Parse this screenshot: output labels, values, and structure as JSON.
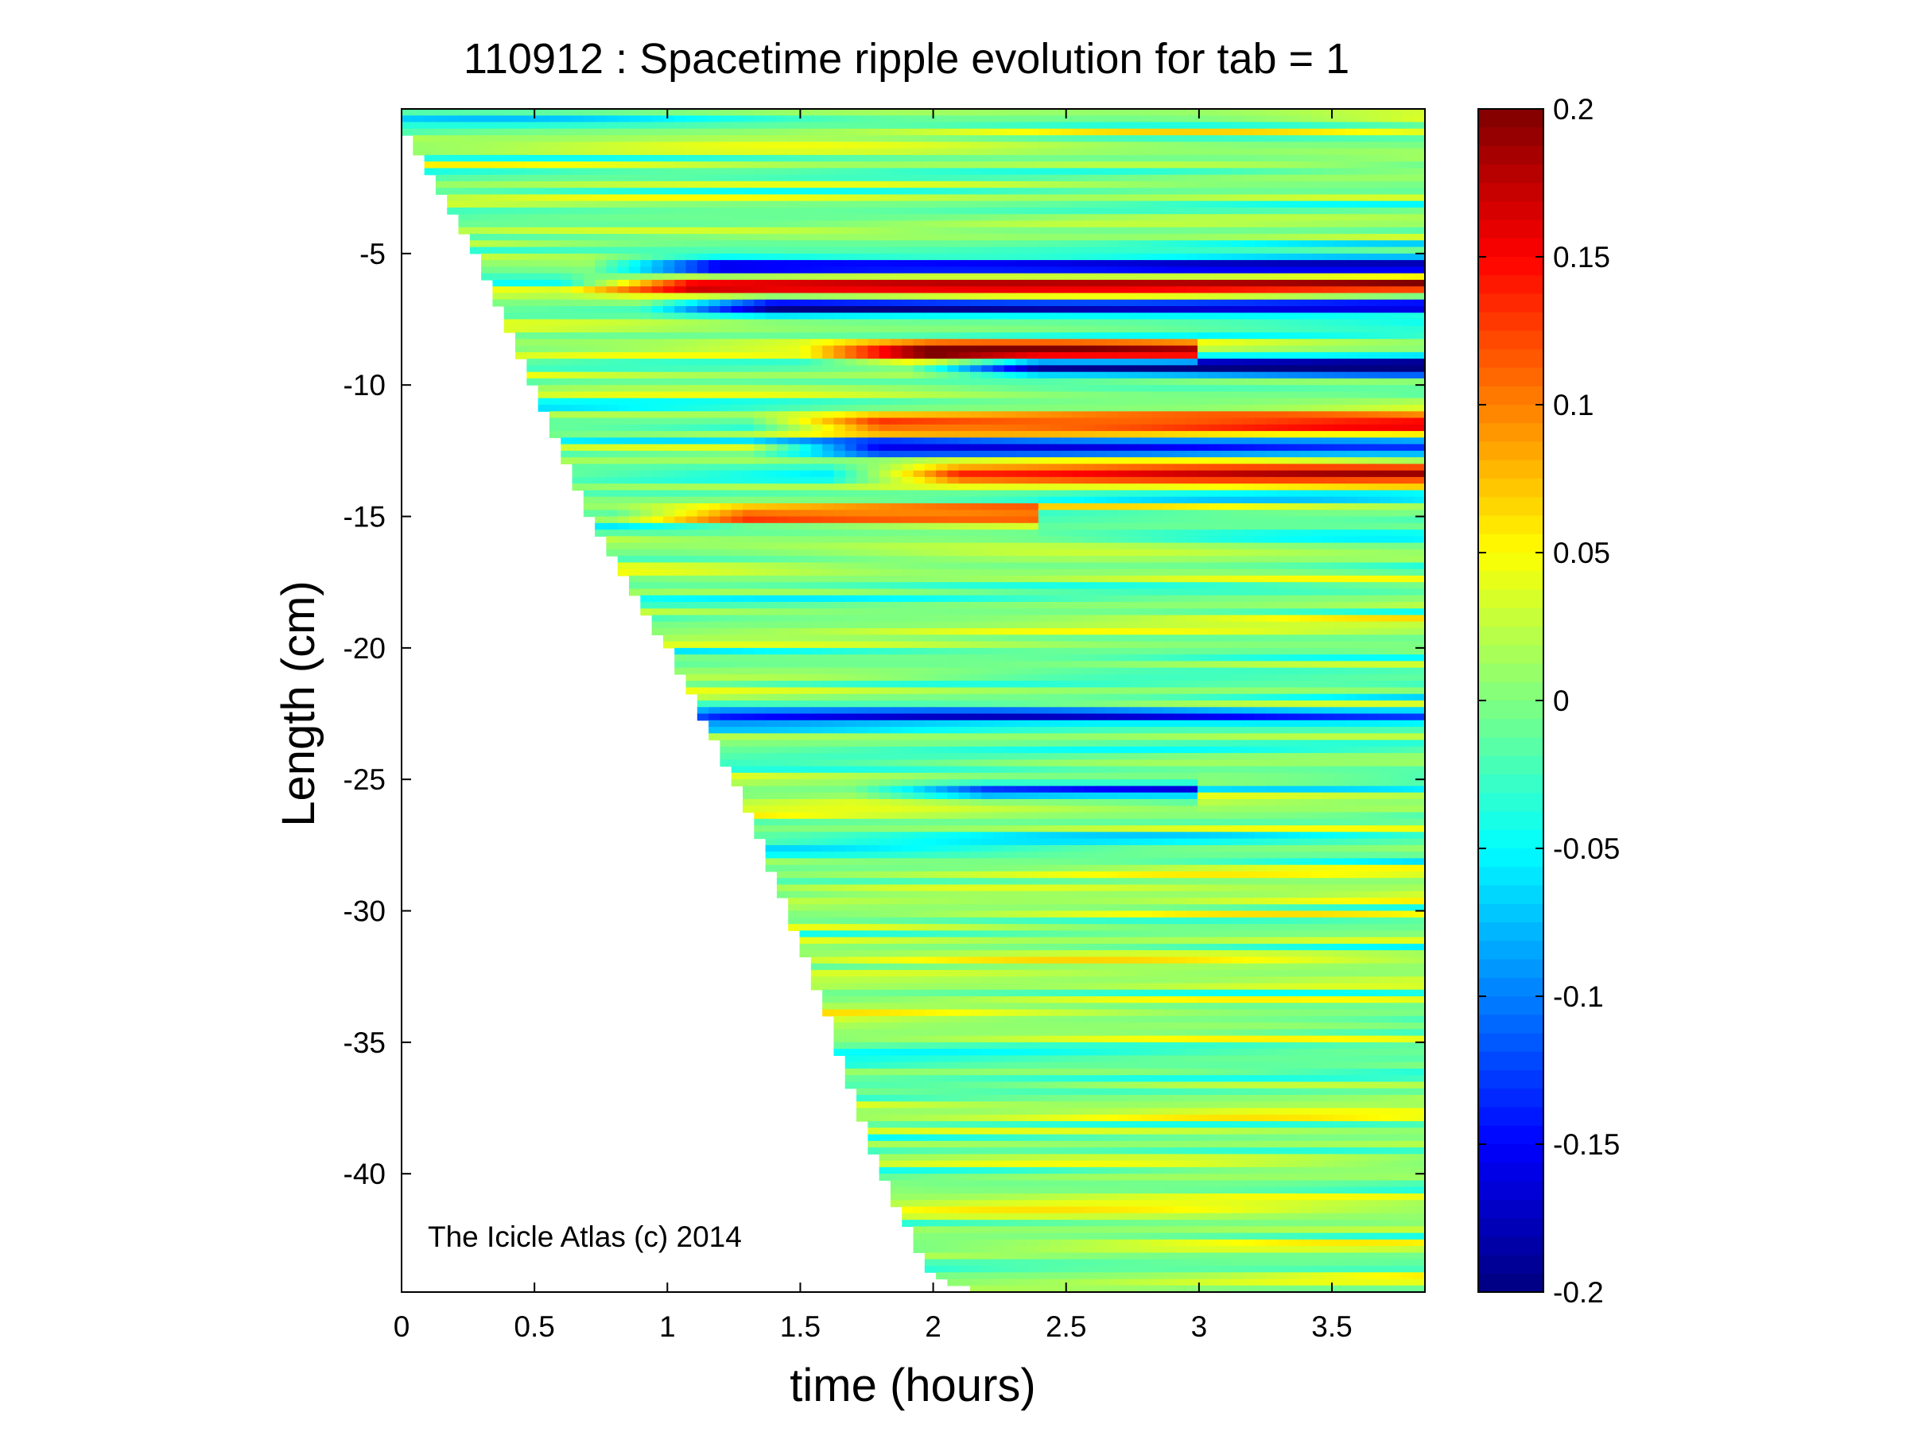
{
  "chart_data": {
    "type": "heatmap",
    "title": "110912 : Spacetime ripple evolution for tab = 1",
    "xlabel": "time (hours)",
    "ylabel": "Length (cm)",
    "xlim": [
      0,
      3.85
    ],
    "ylim": [
      -44.5,
      0.5
    ],
    "x_ticks": [
      0,
      0.5,
      1,
      1.5,
      2,
      2.5,
      3,
      3.5
    ],
    "x_tick_labels": [
      "0",
      "0.5",
      "1",
      "1.5",
      "2",
      "2.5",
      "3",
      "3.5"
    ],
    "y_ticks": [
      -5,
      -10,
      -15,
      -20,
      -25,
      -30,
      -35,
      -40
    ],
    "y_tick_labels": [
      "-5",
      "-10",
      "-15",
      "-20",
      "-25",
      "-30",
      "-35",
      "-40"
    ],
    "colorbar": {
      "colormap": "jet",
      "clim": [
        -0.2,
        0.2
      ],
      "ticks": [
        0.2,
        0.15,
        0.1,
        0.05,
        0,
        -0.05,
        -0.1,
        -0.15,
        -0.2
      ],
      "tick_labels": [
        "0.2",
        "0.15",
        "0.1",
        "0.05",
        "0",
        "-0.05",
        "-0.1",
        "-0.15",
        "-0.2"
      ]
    },
    "growth_front": {
      "description_points_time_hours": [
        0,
        0.3,
        0.7,
        1.0,
        1.3,
        1.6,
        1.8,
        2.0,
        2.2
      ],
      "length_cm": [
        0,
        -5.5,
        -15,
        -20,
        -26,
        -34,
        -40,
        -44,
        -44.5
      ]
    },
    "features": [
      {
        "y_cm": -6.2,
        "t_start": 0.9,
        "t_end": 3.85,
        "amplitude": 0.2
      },
      {
        "y_cm": -5.5,
        "t_start": 1.0,
        "t_end": 3.85,
        "amplitude": -0.2
      },
      {
        "y_cm": -7.0,
        "t_start": 1.2,
        "t_end": 3.85,
        "amplitude": -0.18
      },
      {
        "y_cm": -8.8,
        "t_start": 1.8,
        "t_end": 3.0,
        "amplitude": 0.2
      },
      {
        "y_cm": -9.3,
        "t_start": 2.2,
        "t_end": 3.85,
        "amplitude": -0.2
      },
      {
        "y_cm": -11.5,
        "t_start": 1.6,
        "t_end": 3.85,
        "amplitude": 0.18
      },
      {
        "y_cm": -12.4,
        "t_start": 1.6,
        "t_end": 3.85,
        "amplitude": -0.18
      },
      {
        "y_cm": -13.4,
        "t_start": 1.9,
        "t_end": 3.85,
        "amplitude": 0.2
      },
      {
        "y_cm": -15.0,
        "t_start": 1.1,
        "t_end": 2.4,
        "amplitude": 0.15
      },
      {
        "y_cm": -22.6,
        "t_start": 1.0,
        "t_end": 3.85,
        "amplitude": -0.12
      },
      {
        "y_cm": -25.5,
        "t_start": 2.0,
        "t_end": 3.0,
        "amplitude": -0.12
      }
    ],
    "credit": "The Icicle Atlas (c) 2014"
  }
}
